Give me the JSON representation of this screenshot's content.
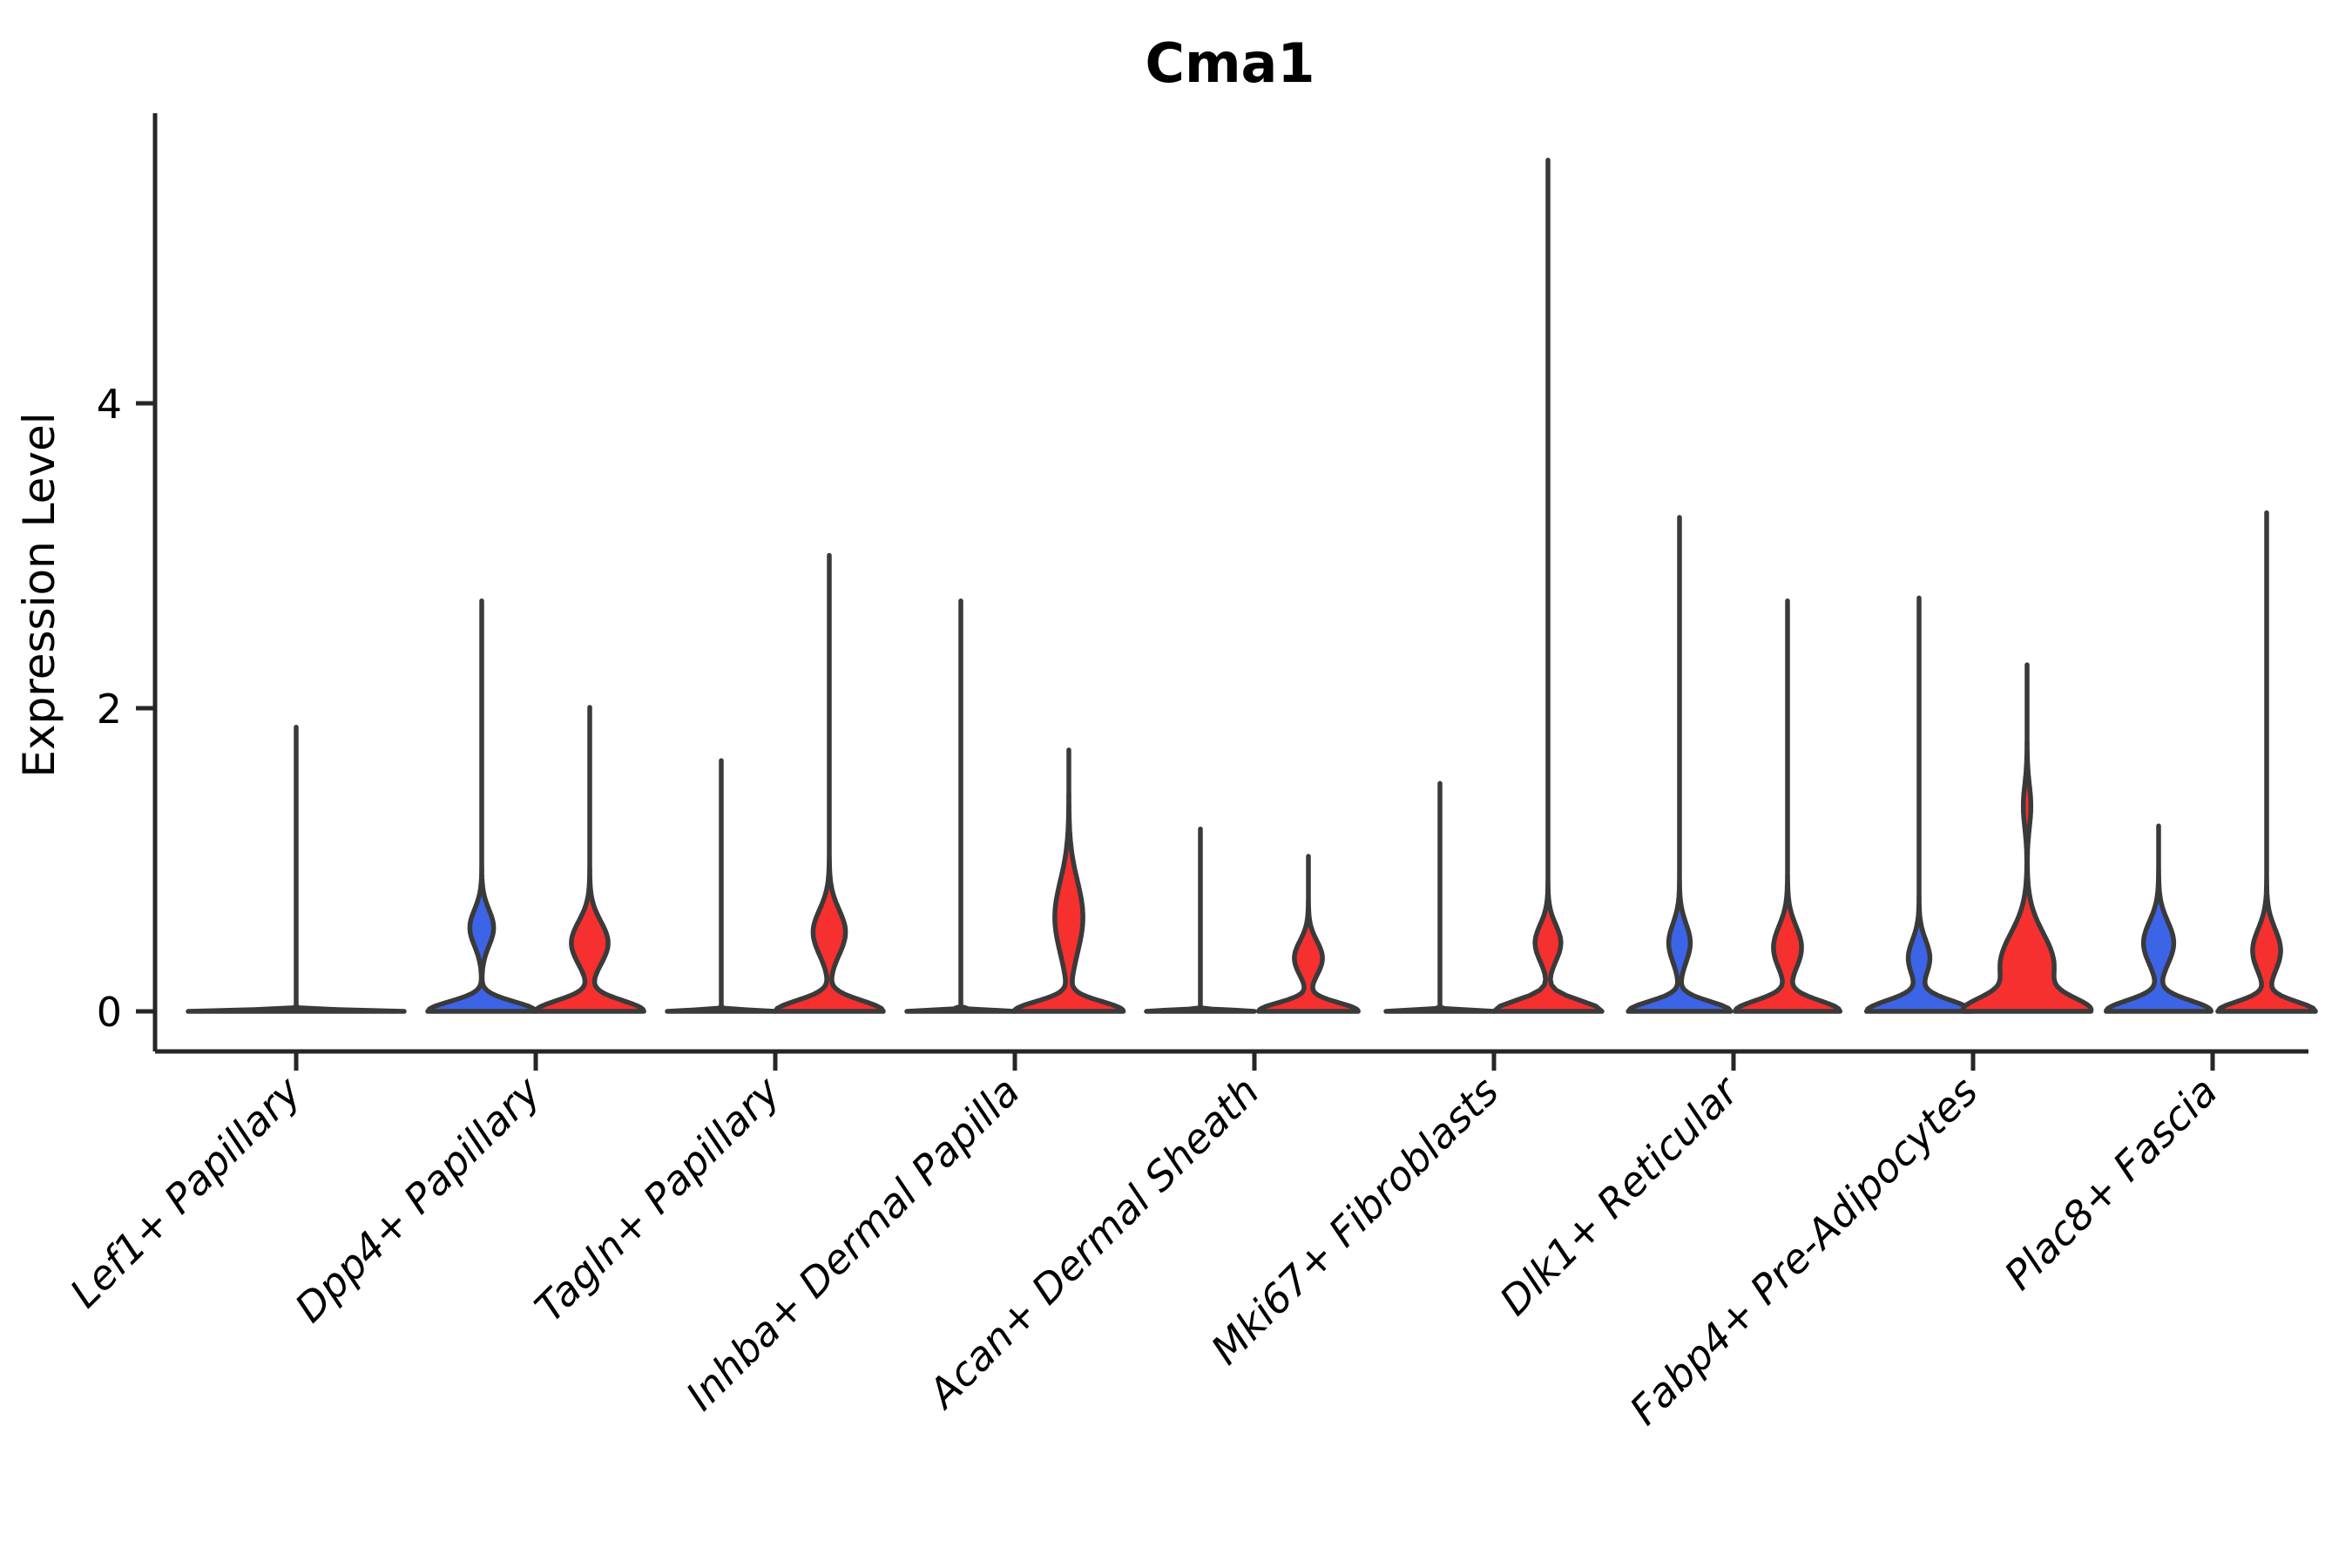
{
  "page": {
    "background": "#ffffff"
  },
  "chart_data": {
    "type": "violin",
    "title": "Cma1",
    "xlabel": "",
    "ylabel": "Expression Level",
    "ylim": [
      -0.27,
      5.91
    ],
    "yticks": [
      {
        "value": 0,
        "label": "0"
      },
      {
        "value": 2,
        "label": "2"
      },
      {
        "value": 4,
        "label": "4"
      }
    ],
    "grid": false,
    "legend": false,
    "categories": [
      "Lef1+ Papillary",
      "Dpp4+ Papillary",
      "Tagln+ Papillary",
      "Inhba+ Dermal Papilla",
      "Acan+ Dermal Sheath",
      "Mki67+ Fibroblasts",
      "Dlk1+ Reticular",
      "Fabp4+ Pre-Adipocytes",
      "Plac8+ Fascia"
    ],
    "groups": [
      {
        "name": "group-1",
        "color": "#3C64E6"
      },
      {
        "name": "group-2",
        "color": "#F5302E"
      }
    ],
    "style": {
      "outline": "#3A3A3A",
      "axis": "#262626",
      "flat": "#3A3A3A",
      "text": "#000000"
    },
    "violins": [
      {
        "category": "Lef1+ Papillary",
        "items": [
          {
            "group": "both-flat",
            "side": "center",
            "max": 1.87,
            "width": 2.0,
            "lobes": [
              [
                0,
                0.012,
                1.0
              ]
            ]
          }
        ]
      },
      {
        "category": "Dpp4+ Papillary",
        "items": [
          {
            "group": "group-1",
            "side": "left",
            "max": 2.7,
            "lobes": [
              [
                0,
                0.09,
                1.0
              ],
              [
                0.55,
                0.17,
                0.22
              ]
            ]
          },
          {
            "group": "group-2",
            "side": "right",
            "max": 2.0,
            "lobes": [
              [
                0,
                0.1,
                1.0
              ],
              [
                0.45,
                0.2,
                0.34
              ]
            ]
          }
        ]
      },
      {
        "category": "Tagln+ Papillary",
        "items": [
          {
            "group": "group-1",
            "side": "left",
            "max": 1.65,
            "lobes": [
              [
                0,
                0.012,
                1.0
              ]
            ]
          },
          {
            "group": "group-2",
            "side": "right",
            "max": 3.0,
            "lobes": [
              [
                0,
                0.1,
                1.0
              ],
              [
                0.52,
                0.21,
                0.3
              ]
            ]
          }
        ]
      },
      {
        "category": "Inhba+ Dermal Papilla",
        "items": [
          {
            "group": "group-1",
            "side": "left",
            "max": 2.7,
            "lobes": [
              [
                0,
                0.012,
                1.0
              ]
            ]
          },
          {
            "group": "group-2",
            "side": "right",
            "max": 1.72,
            "lobes": [
              [
                0,
                0.09,
                1.0
              ],
              [
                0.62,
                0.34,
                0.26
              ]
            ]
          }
        ]
      },
      {
        "category": "Acan+ Dermal Sheath",
        "items": [
          {
            "group": "group-1",
            "side": "left",
            "max": 1.2,
            "lobes": [
              [
                0,
                0.012,
                1.0
              ]
            ]
          },
          {
            "group": "group-2",
            "side": "right",
            "max": 1.02,
            "lobes": [
              [
                0,
                0.08,
                0.92
              ],
              [
                0.35,
                0.16,
                0.26
              ]
            ]
          }
        ]
      },
      {
        "category": "Mki67+ Fibroblasts",
        "items": [
          {
            "group": "group-1",
            "side": "left",
            "max": 1.5,
            "lobes": [
              [
                0,
                0.012,
                1.0
              ]
            ]
          },
          {
            "group": "group-2",
            "side": "right",
            "max": 5.6,
            "lobes": [
              [
                0,
                0.1,
                1.0
              ],
              [
                0.45,
                0.17,
                0.24
              ]
            ]
          }
        ]
      },
      {
        "category": "Dlk1+ Reticular",
        "items": [
          {
            "group": "group-1",
            "side": "left",
            "max": 3.25,
            "lobes": [
              [
                0,
                0.09,
                0.95
              ],
              [
                0.45,
                0.18,
                0.2
              ]
            ]
          },
          {
            "group": "group-2",
            "side": "right",
            "max": 2.7,
            "lobes": [
              [
                0,
                0.1,
                0.97
              ],
              [
                0.42,
                0.2,
                0.26
              ]
            ]
          }
        ]
      },
      {
        "category": "Fabp4+ Pre-Adipocytes",
        "items": [
          {
            "group": "group-1",
            "side": "left",
            "max": 2.72,
            "lobes": [
              [
                0,
                0.1,
                0.97
              ],
              [
                0.35,
                0.17,
                0.2
              ]
            ]
          },
          {
            "group": "group-2",
            "side": "right",
            "max": 2.28,
            "lobes": [
              [
                0,
                0.12,
                1.0
              ],
              [
                0.3,
                0.3,
                0.5
              ],
              [
                1.35,
                0.2,
                0.07
              ]
            ]
          }
        ]
      },
      {
        "category": "Plac8+ Fascia",
        "items": [
          {
            "group": "group-1",
            "side": "left",
            "max": 1.22,
            "lobes": [
              [
                0,
                0.1,
                0.97
              ],
              [
                0.45,
                0.2,
                0.28
              ]
            ]
          },
          {
            "group": "group-2",
            "side": "right",
            "max": 3.28,
            "lobes": [
              [
                0,
                0.09,
                0.9
              ],
              [
                0.4,
                0.2,
                0.26
              ]
            ]
          }
        ]
      }
    ]
  }
}
